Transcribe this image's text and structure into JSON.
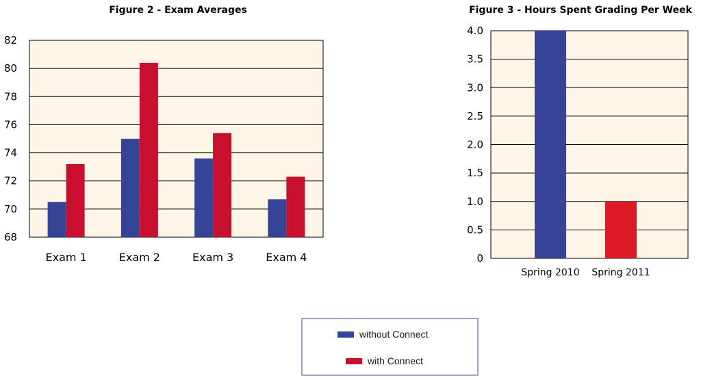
{
  "chart_data": [
    {
      "type": "bar",
      "title": "Figure 2 - Exam Averages",
      "categories": [
        "Exam 1",
        "Exam 2",
        "Exam 3",
        "Exam 4"
      ],
      "series": [
        {
          "name": "without Connect",
          "values": [
            70.5,
            75.0,
            73.6,
            70.7
          ]
        },
        {
          "name": "with Connect",
          "values": [
            73.2,
            80.4,
            75.4,
            72.3
          ]
        }
      ],
      "ylim": [
        68,
        82
      ],
      "yticks": [
        "68",
        "70",
        "72",
        "74",
        "76",
        "78",
        "80",
        "82"
      ],
      "grid": true
    },
    {
      "type": "bar",
      "title": "Figure 3 - Hours Spent Grading Per Week",
      "categories": [
        "Spring 2010",
        "Spring 2011"
      ],
      "values": [
        4.0,
        1.0
      ],
      "ylim": [
        0,
        4
      ],
      "yticks": [
        "0",
        "0.5",
        "1.0",
        "1.5",
        "2.0",
        "2.5",
        "3.0",
        "3.5",
        "4.0"
      ],
      "grid": true
    }
  ],
  "legend": {
    "placement": "bottom-center",
    "items": [
      "without Connect",
      "with Connect"
    ]
  },
  "colors": {
    "without_connect": "#354497",
    "with_connect": "#c8102e",
    "with_connect_fig3": "#dd1a27",
    "plot_bg": "#fdf6e8"
  }
}
